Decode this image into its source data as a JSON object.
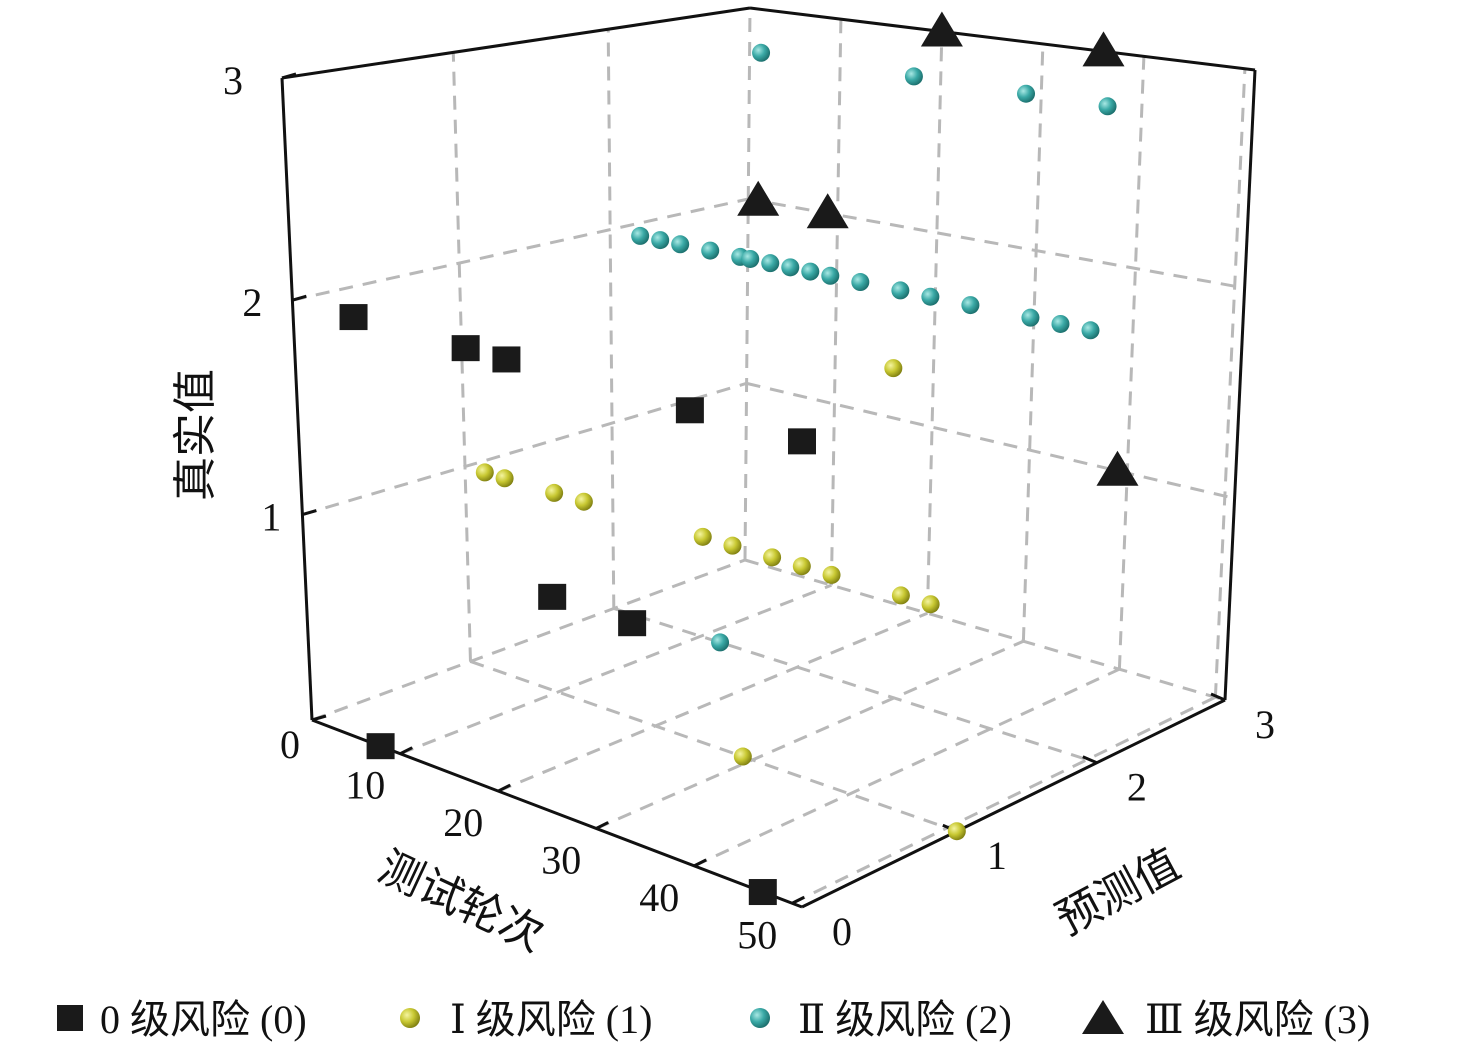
{
  "chart_data": {
    "type": "scatter",
    "projection": "3d",
    "title": "",
    "xlabel": "测试轮次",
    "ylabel": "预测值",
    "zlabel": "真实值",
    "xlim": [
      1,
      51
    ],
    "ylim": [
      0,
      3
    ],
    "zlim": [
      0,
      3
    ],
    "xticks": [
      10,
      20,
      30,
      40,
      50
    ],
    "yticks": [
      0,
      1,
      2,
      3
    ],
    "zticks": [
      0,
      1,
      2,
      3
    ],
    "grid": true,
    "legend_position": "bottom",
    "colors": {
      "level0": "#1a1a1a",
      "level1": "#c8c832",
      "level2": "#3aa9a6",
      "level3": "#1a1a1a"
    },
    "series": [
      {
        "name": "0 级风险 (0)",
        "marker": "square",
        "points": [
          {
            "round": 7,
            "pred": 0,
            "true": 2
          },
          {
            "round": 18,
            "pred": 0,
            "true": 2
          },
          {
            "round": 22,
            "pred": 0,
            "true": 2
          },
          {
            "round": 40,
            "pred": 0,
            "true": 2
          },
          {
            "round": 51,
            "pred": 0,
            "true": 2
          },
          {
            "round": 26,
            "pred": 0,
            "true": 1
          },
          {
            "round": 34,
            "pred": 0,
            "true": 1
          },
          {
            "round": 8,
            "pred": 0,
            "true": 0
          },
          {
            "round": 47,
            "pred": 0,
            "true": 0
          }
        ]
      },
      {
        "name": "Ⅰ 级风险 (1)",
        "marker": "ball",
        "points": [
          {
            "round": 3,
            "pred": 1,
            "true": 1
          },
          {
            "round": 5,
            "pred": 1,
            "true": 1
          },
          {
            "round": 10,
            "pred": 1,
            "true": 1
          },
          {
            "round": 13,
            "pred": 1,
            "true": 1
          },
          {
            "round": 25,
            "pred": 1,
            "true": 1
          },
          {
            "round": 28,
            "pred": 1,
            "true": 1
          },
          {
            "round": 32,
            "pred": 1,
            "true": 1
          },
          {
            "round": 35,
            "pred": 1,
            "true": 1
          },
          {
            "round": 38,
            "pred": 1,
            "true": 1
          },
          {
            "round": 45,
            "pred": 1,
            "true": 1
          },
          {
            "round": 48,
            "pred": 1,
            "true": 1
          },
          {
            "round": 44,
            "pred": 1,
            "true": 2
          },
          {
            "round": 29,
            "pred": 1,
            "true": 0
          },
          {
            "round": 51,
            "pred": 1,
            "true": 0
          }
        ]
      },
      {
        "name": "Ⅱ 级风险 (2)",
        "marker": "ball",
        "points": [
          {
            "round": 4,
            "pred": 2,
            "true": 2
          },
          {
            "round": 6,
            "pred": 2,
            "true": 2
          },
          {
            "round": 8,
            "pred": 2,
            "true": 2
          },
          {
            "round": 11,
            "pred": 2,
            "true": 2
          },
          {
            "round": 14,
            "pred": 2,
            "true": 2
          },
          {
            "round": 15,
            "pred": 2,
            "true": 2
          },
          {
            "round": 17,
            "pred": 2,
            "true": 2
          },
          {
            "round": 19,
            "pred": 2,
            "true": 2
          },
          {
            "round": 21,
            "pred": 2,
            "true": 2
          },
          {
            "round": 23,
            "pred": 2,
            "true": 2
          },
          {
            "round": 26,
            "pred": 2,
            "true": 2
          },
          {
            "round": 30,
            "pred": 2,
            "true": 2
          },
          {
            "round": 33,
            "pred": 2,
            "true": 2
          },
          {
            "round": 37,
            "pred": 2,
            "true": 2
          },
          {
            "round": 43,
            "pred": 2,
            "true": 2
          },
          {
            "round": 46,
            "pred": 2,
            "true": 2
          },
          {
            "round": 49,
            "pred": 2,
            "true": 2
          },
          {
            "round": 16,
            "pred": 2,
            "true": 3
          },
          {
            "round": 31,
            "pred": 2,
            "true": 3
          },
          {
            "round": 42,
            "pred": 2,
            "true": 3
          },
          {
            "round": 50,
            "pred": 2,
            "true": 3
          },
          {
            "round": 12,
            "pred": 2,
            "true": 0
          }
        ]
      },
      {
        "name": "Ⅲ 级风险 (3)",
        "marker": "triangle",
        "points": [
          {
            "round": 20,
            "pred": 3,
            "true": 3
          },
          {
            "round": 36,
            "pred": 3,
            "true": 3
          },
          {
            "round": 2,
            "pred": 3,
            "true": 2
          },
          {
            "round": 9,
            "pred": 3,
            "true": 2
          },
          {
            "round": 39,
            "pred": 3,
            "true": 1
          }
        ]
      }
    ]
  }
}
